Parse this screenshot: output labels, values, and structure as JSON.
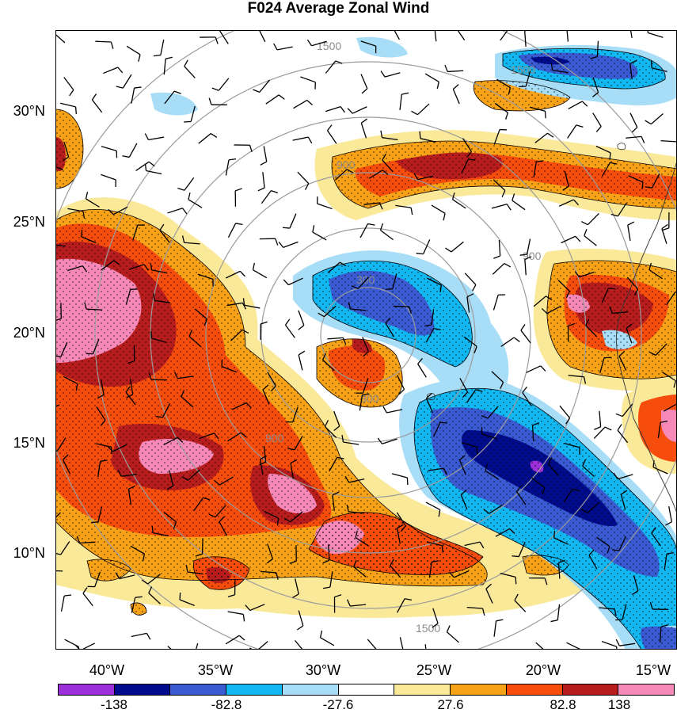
{
  "title": "F024 Average Zonal Wind",
  "lat_labels": [
    "30°N",
    "25°N",
    "20°N",
    "15°N",
    "10°N"
  ],
  "lon_labels": [
    "40°W",
    "35°W",
    "30°W",
    "25°W",
    "20°W",
    "15°W"
  ],
  "colorbar": {
    "colors": [
      "#9b30d8",
      "#000c8c",
      "#3a5ad1",
      "#12b8f2",
      "#a8ddf7",
      "#ffffff",
      "#fbe99a",
      "#f8a217",
      "#f74d0c",
      "#b81d1d",
      "#f789b8"
    ],
    "labels": [
      "-138",
      "-82.8",
      "-27.6",
      "27.6",
      "82.8",
      "138"
    ]
  },
  "range_ring_labels": [
    "300",
    "900",
    "1500",
    "900",
    "1500",
    "300",
    "900",
    "1500"
  ]
}
